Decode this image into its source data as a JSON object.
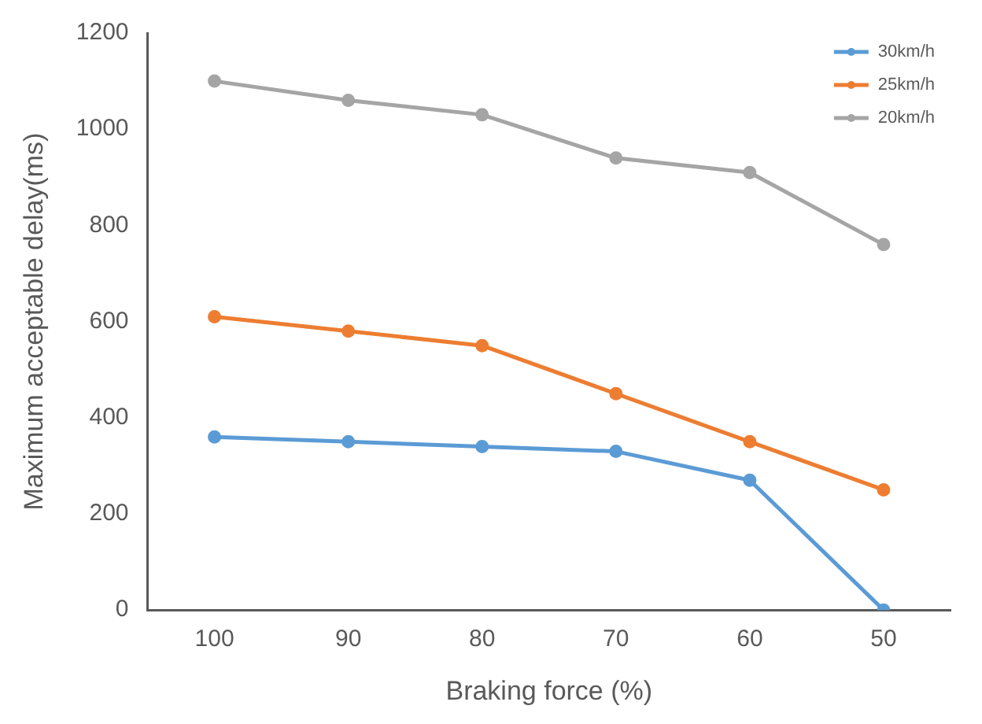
{
  "chart_data": {
    "type": "line",
    "xlabel": "Braking force (%)",
    "ylabel": "Maximum acceptable delay(ms)",
    "categories": [
      "100",
      "90",
      "80",
      "70",
      "60",
      "50"
    ],
    "series": [
      {
        "name": "30km/h",
        "color": "#5b9bd5",
        "values": [
          360,
          350,
          340,
          330,
          270,
          0
        ]
      },
      {
        "name": "25km/h",
        "color": "#ed7d31",
        "values": [
          610,
          580,
          550,
          450,
          350,
          250
        ]
      },
      {
        "name": "20km/h",
        "color": "#a5a5a5",
        "values": [
          1100,
          1060,
          1030,
          940,
          910,
          760
        ]
      }
    ],
    "ylim": [
      0,
      1200
    ],
    "yticks": [
      0,
      200,
      400,
      600,
      800,
      1000,
      1200
    ],
    "grid": false,
    "legend": "top right",
    "marker": "circle",
    "line_style": "solid"
  }
}
